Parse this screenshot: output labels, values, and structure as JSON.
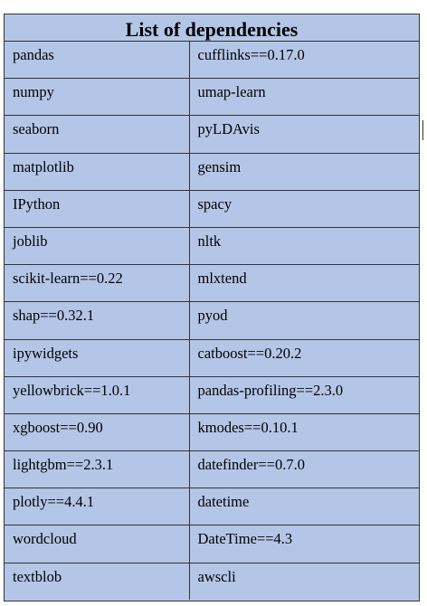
{
  "title": "List of dependencies",
  "rows": [
    [
      "pandas",
      "cufflinks==0.17.0"
    ],
    [
      "numpy",
      "umap-learn"
    ],
    [
      "seaborn",
      "pyLDAvis"
    ],
    [
      "matplotlib",
      "gensim"
    ],
    [
      "IPython",
      "spacy"
    ],
    [
      "joblib",
      "nltk"
    ],
    [
      "scikit-learn==0.22",
      "mlxtend"
    ],
    [
      "shap==0.32.1",
      "pyod"
    ],
    [
      "ipywidgets",
      "catboost==0.20.2"
    ],
    [
      "yellowbrick==1.0.1",
      "pandas-profiling==2.3.0"
    ],
    [
      "xgboost==0.90",
      "kmodes==0.10.1"
    ],
    [
      "lightgbm==2.3.1",
      "datefinder==0.7.0"
    ],
    [
      "plotly==4.4.1",
      "datetime"
    ],
    [
      "wordcloud",
      "DateTime==4.3"
    ],
    [
      "textblob",
      "awscli"
    ]
  ],
  "colors": {
    "background": "#b4c6e7",
    "border": "#333333"
  }
}
